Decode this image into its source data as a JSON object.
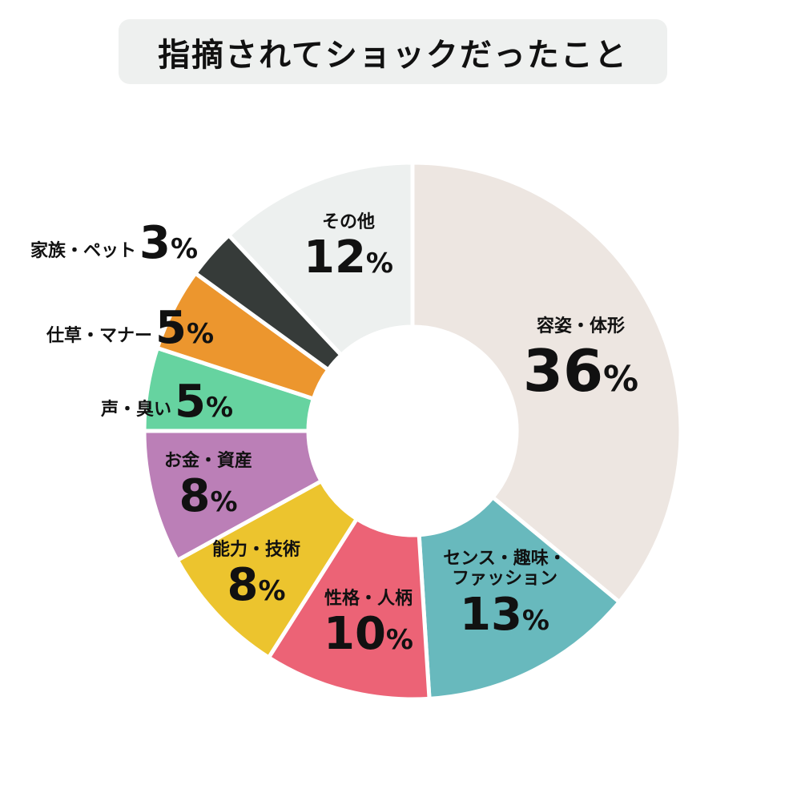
{
  "title": "指摘されてショックだったこと",
  "colors": {
    "title_bg": "#eef0ef",
    "separator": "#ffffff"
  },
  "chart_data": {
    "type": "pie",
    "variant": "donut",
    "title": "指摘されてショックだったこと",
    "unit": "%",
    "start_angle": "12 o'clock, clockwise",
    "categories": [
      "容姿・体形",
      "センス・趣味・ファッション",
      "性格・人柄",
      "能力・技術",
      "お金・資産",
      "声・臭い",
      "仕草・マナー",
      "家族・ペット",
      "その他"
    ],
    "values": [
      36,
      13,
      10,
      8,
      8,
      5,
      5,
      3,
      12
    ],
    "colors": [
      "#ede6e1",
      "#68b9bd",
      "#ec6376",
      "#ecc42e",
      "#bb7fb7",
      "#66d3a0",
      "#ec962e",
      "#363b39",
      "#edf0ef"
    ],
    "legend": "none (labels on/near segments)"
  },
  "segments": [
    {
      "name": "容姿・体形",
      "pct": "36",
      "sym": "%"
    },
    {
      "name": "センス・趣味・",
      "name2": "ファッション",
      "pct": "13",
      "sym": "%"
    },
    {
      "name": "性格・人柄",
      "pct": "10",
      "sym": "%"
    },
    {
      "name": "能力・技術",
      "pct": "8",
      "sym": "%"
    },
    {
      "name": "お金・資産",
      "pct": "8",
      "sym": "%"
    },
    {
      "name": "声・臭い",
      "pct": "5",
      "sym": "%"
    },
    {
      "name": "仕草・マナー",
      "pct": "5",
      "sym": "%"
    },
    {
      "name": "家族・ペット",
      "pct": "3",
      "sym": "%"
    },
    {
      "name": "その他",
      "pct": "12",
      "sym": "%"
    }
  ]
}
